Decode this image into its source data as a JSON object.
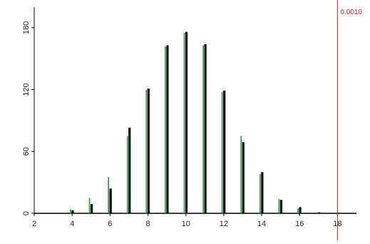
{
  "chart_data": {
    "type": "bar",
    "title": "",
    "xlabel": "",
    "ylabel": "",
    "x": [
      4,
      5,
      6,
      7,
      8,
      9,
      10,
      11,
      12,
      13,
      14,
      15,
      16,
      17
    ],
    "series": [
      {
        "color": "#1f9a3a",
        "values": [
          4,
          15,
          35,
          75,
          120,
          162,
          175,
          163,
          118,
          75,
          38,
          14,
          5,
          1
        ]
      },
      {
        "color": "#000000",
        "values": [
          3,
          9,
          24,
          83,
          121,
          163,
          176,
          164,
          119,
          69,
          40,
          13,
          6,
          1
        ]
      }
    ],
    "xlim": [
      2,
      19
    ],
    "ylim": [
      0,
      200
    ],
    "xticks": [
      2,
      4,
      6,
      8,
      10,
      12,
      14,
      16,
      18
    ],
    "yticks": [
      0,
      60,
      120,
      180
    ],
    "xtick_labels": [
      "2",
      "4",
      "6",
      "8",
      "10",
      "12",
      "14",
      "16",
      "18"
    ],
    "ytick_labels": [
      "0",
      "60",
      "120",
      "180"
    ],
    "reference_line": {
      "x": 18,
      "label": "0.0010",
      "color": "#cc2222"
    },
    "grid": false,
    "legend": "none"
  }
}
